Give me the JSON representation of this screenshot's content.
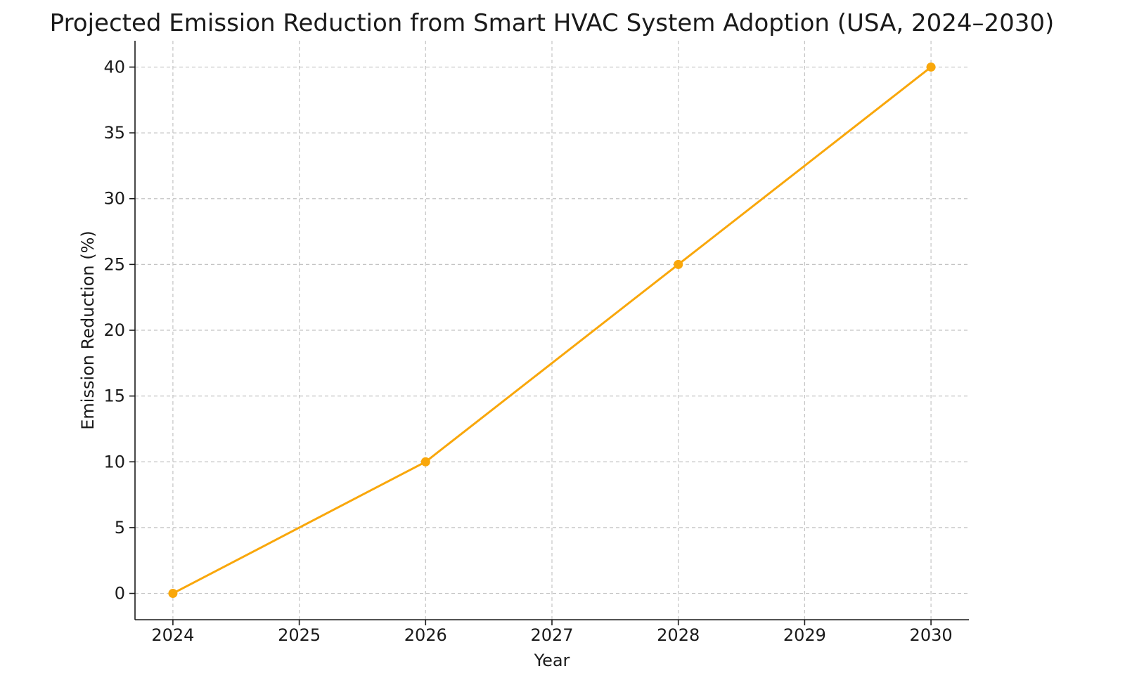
{
  "chart_data": {
    "type": "line",
    "title": "Projected Emission Reduction from Smart HVAC System Adoption (USA, 2024–2030)",
    "xlabel": "Year",
    "ylabel": "Emission Reduction (%)",
    "x": [
      2024,
      2026,
      2028,
      2030
    ],
    "y": [
      0,
      10,
      25,
      40
    ],
    "xlim": [
      2023.7,
      2030.3
    ],
    "ylim": [
      -2,
      42
    ],
    "xticks": [
      2024,
      2025,
      2026,
      2027,
      2028,
      2029,
      2030
    ],
    "xtick_labels": [
      "2024",
      "2025",
      "2026",
      "2027",
      "2028",
      "2029",
      "2030"
    ],
    "yticks": [
      0,
      5,
      10,
      15,
      20,
      25,
      30,
      35,
      40
    ],
    "ytick_labels": [
      "0",
      "5",
      "10",
      "15",
      "20",
      "25",
      "30",
      "35",
      "40"
    ],
    "grid": true,
    "line_color": "#F9A70B",
    "marker": "circle"
  }
}
